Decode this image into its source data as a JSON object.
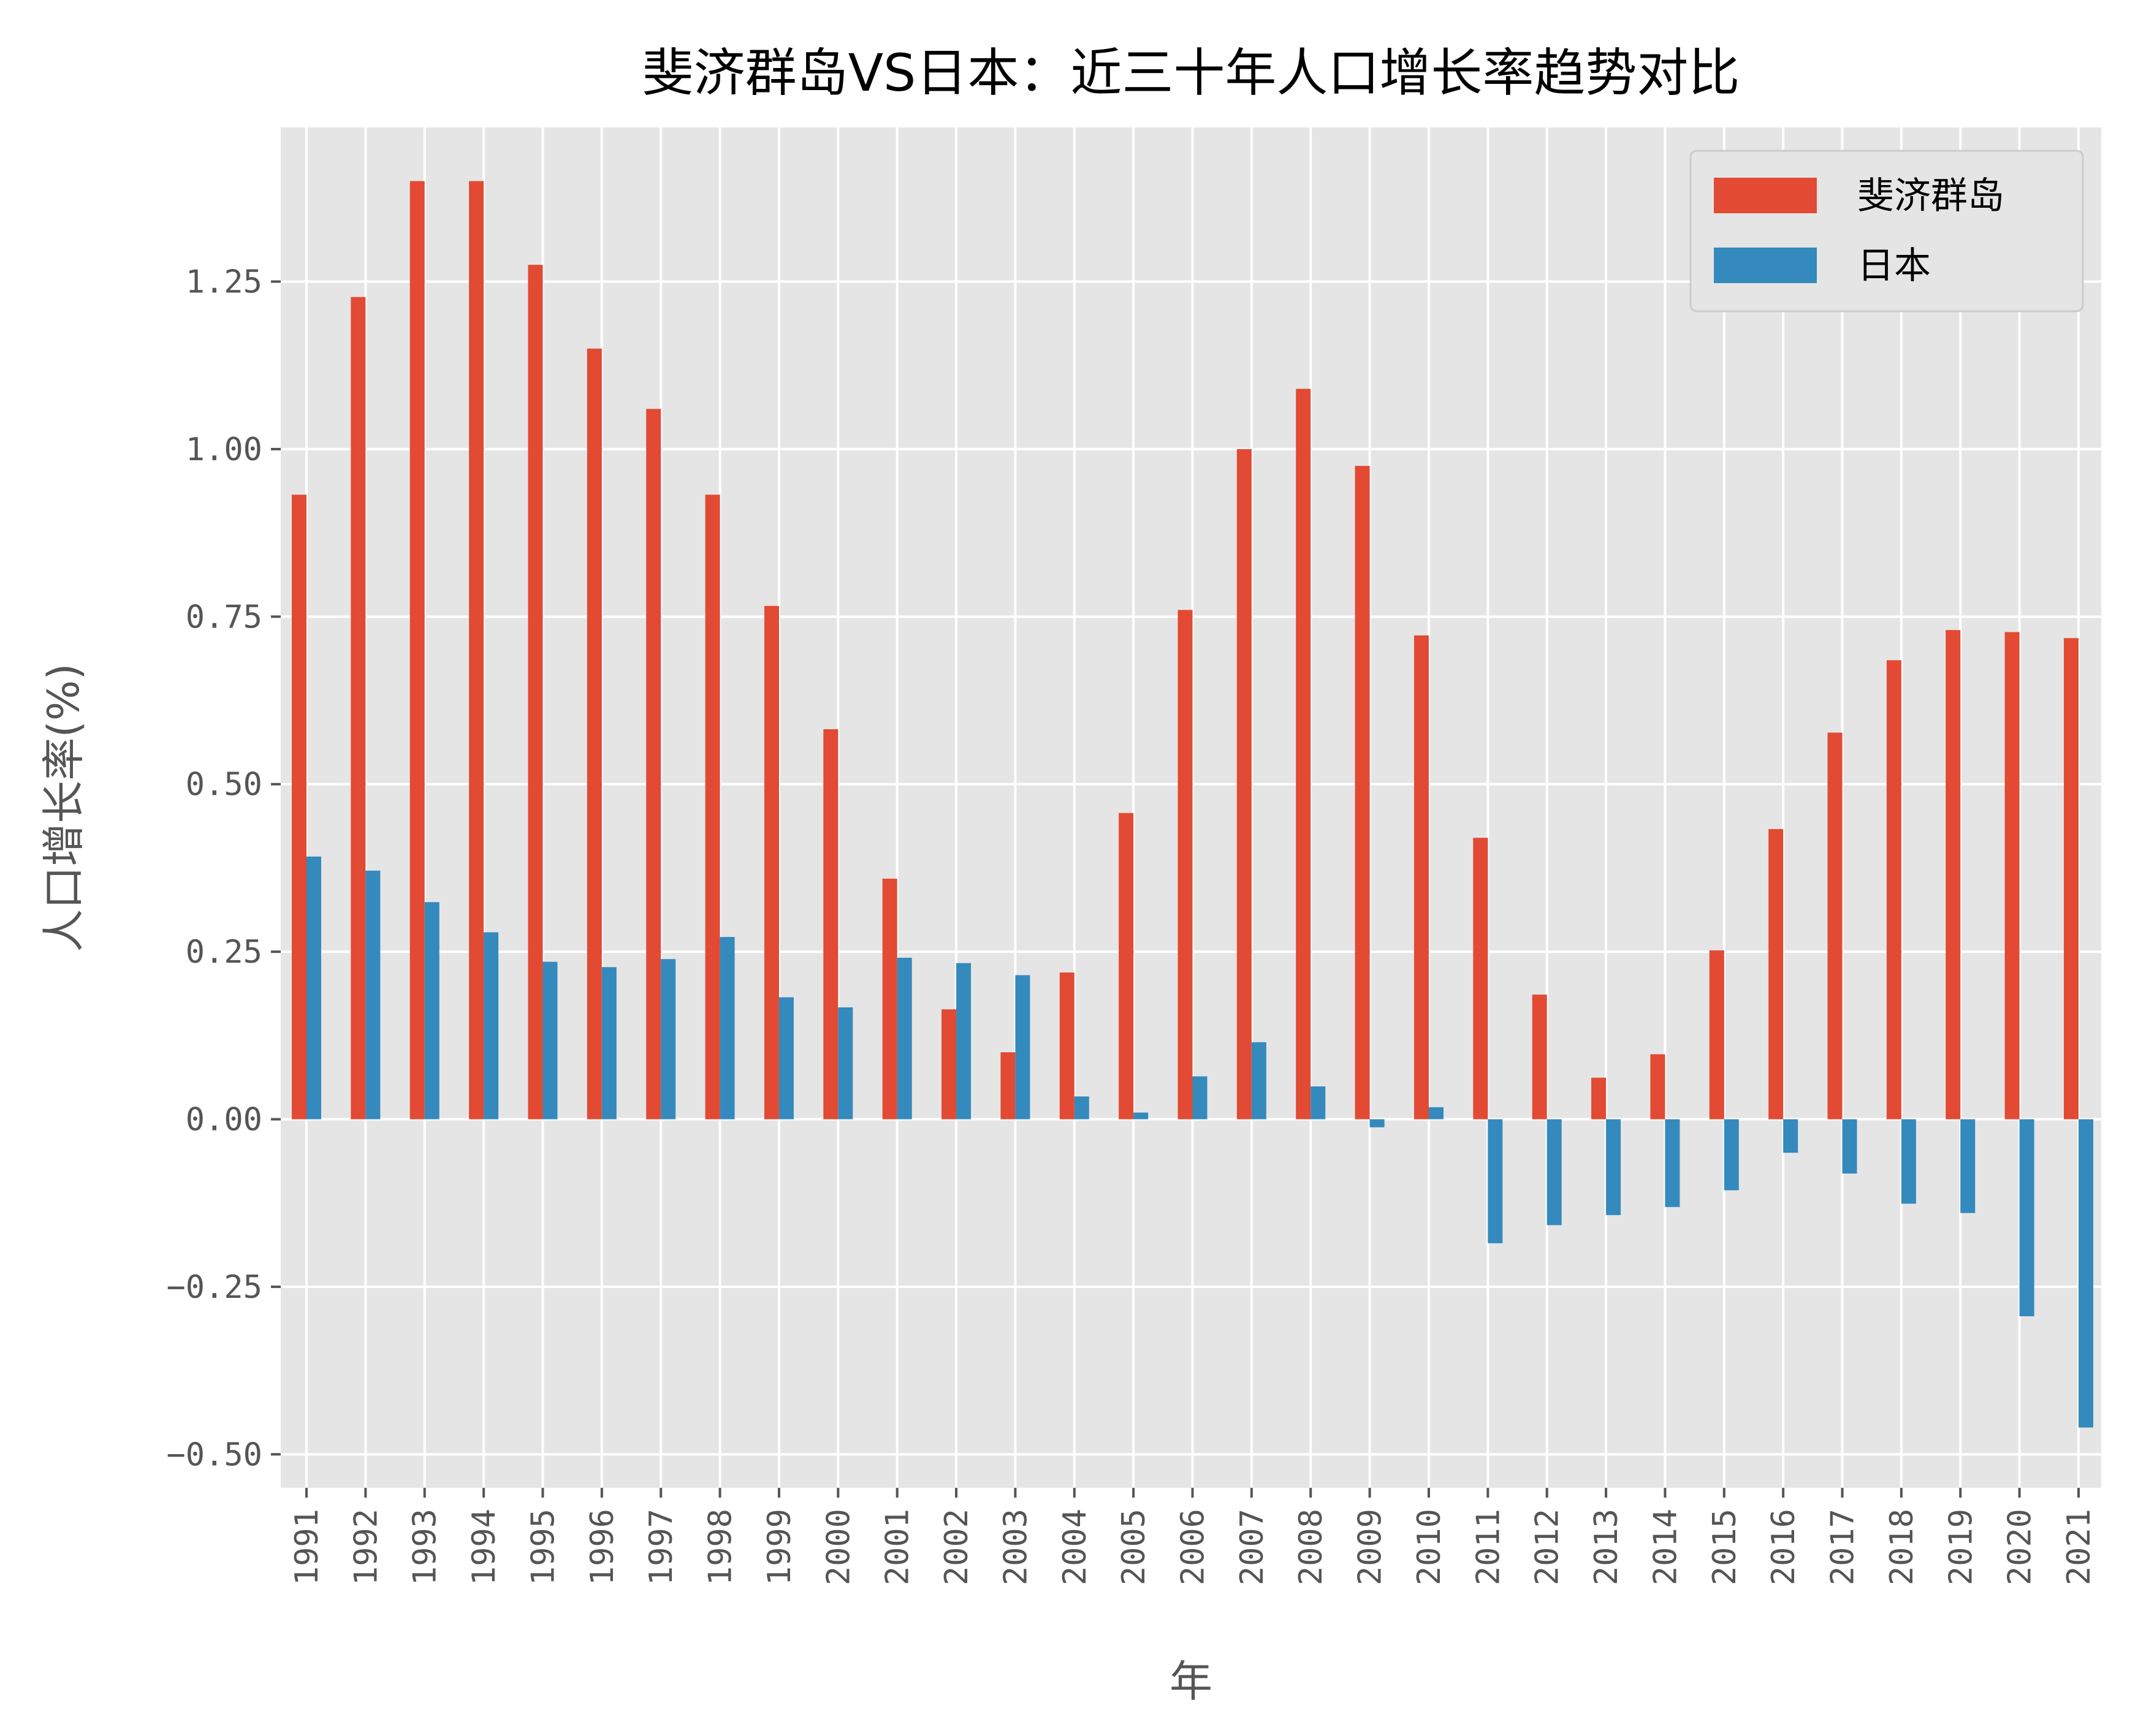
{
  "chart_data": {
    "type": "bar",
    "title": "斐济群岛VS日本：近三十年人口增长率趋势对比",
    "xlabel": "年",
    "ylabel": "人口增长率(%)",
    "ylim": [
      -0.55,
      1.48
    ],
    "yticks": [
      -0.5,
      -0.25,
      0.0,
      0.25,
      0.5,
      0.75,
      1.0,
      1.25
    ],
    "ytick_labels": [
      "−0.50",
      "−0.25",
      "0.00",
      "0.25",
      "0.50",
      "0.75",
      "1.00",
      "1.25"
    ],
    "grid": true,
    "legend_position": "top-right",
    "categories": [
      "1991",
      "1992",
      "1993",
      "1994",
      "1995",
      "1996",
      "1997",
      "1998",
      "1999",
      "2000",
      "2001",
      "2002",
      "2003",
      "2004",
      "2005",
      "2006",
      "2007",
      "2008",
      "2009",
      "2010",
      "2011",
      "2012",
      "2013",
      "2014",
      "2015",
      "2016",
      "2017",
      "2018",
      "2019",
      "2020",
      "2021"
    ],
    "series": [
      {
        "name": "斐济群岛",
        "color": "#E24A33",
        "values": [
          0.932,
          1.227,
          1.4,
          1.4,
          1.275,
          1.15,
          1.06,
          0.932,
          0.766,
          0.582,
          0.359,
          0.164,
          0.1,
          0.219,
          0.457,
          0.76,
          1.0,
          1.09,
          0.975,
          0.722,
          0.42,
          0.186,
          0.062,
          0.097,
          0.252,
          0.433,
          0.577,
          0.685,
          0.73,
          0.727,
          0.718
        ]
      },
      {
        "name": "日本",
        "color": "#348ABD",
        "values": [
          0.392,
          0.371,
          0.324,
          0.279,
          0.235,
          0.227,
          0.239,
          0.272,
          0.182,
          0.167,
          0.241,
          0.233,
          0.215,
          0.034,
          0.01,
          0.064,
          0.115,
          0.049,
          -0.012,
          0.018,
          -0.185,
          -0.158,
          -0.143,
          -0.131,
          -0.106,
          -0.05,
          -0.081,
          -0.126,
          -0.14,
          -0.294,
          -0.46
        ]
      }
    ]
  }
}
